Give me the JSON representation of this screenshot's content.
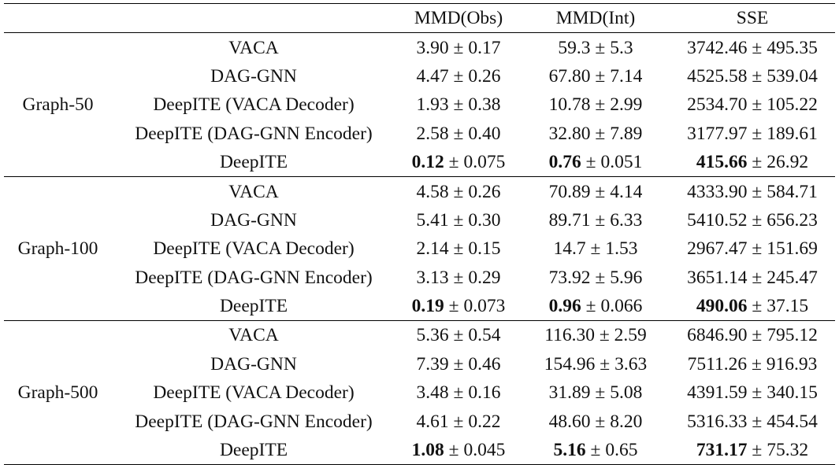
{
  "columns": [
    "",
    "",
    "MMD(Obs)",
    "MMD(Int)",
    "SSE"
  ],
  "groups": [
    {
      "label": "Graph-50",
      "rows": [
        {
          "method": "VACA",
          "mmd_obs": "3.90",
          "mmd_obs_sd": "0.17",
          "mmd_int": "59.3",
          "mmd_int_sd": "5.3",
          "sse": "3742.46",
          "sse_sd": "495.35"
        },
        {
          "method": "DAG-GNN",
          "mmd_obs": "4.47",
          "mmd_obs_sd": "0.26",
          "mmd_int": "67.80",
          "mmd_int_sd": "7.14",
          "sse": "4525.58",
          "sse_sd": "539.04"
        },
        {
          "method": "DeepITE (VACA Decoder)",
          "mmd_obs": "1.93",
          "mmd_obs_sd": "0.38",
          "mmd_int": "10.78",
          "mmd_int_sd": "2.99",
          "sse": "2534.70",
          "sse_sd": "105.22"
        },
        {
          "method": "DeepITE (DAG-GNN Encoder)",
          "mmd_obs": "2.58",
          "mmd_obs_sd": "0.40",
          "mmd_int": "32.80",
          "mmd_int_sd": "7.89",
          "sse": "3177.97",
          "sse_sd": "189.61"
        },
        {
          "method": "DeepITE",
          "mmd_obs": "0.12",
          "mmd_obs_sd": "0.075",
          "mmd_int": "0.76",
          "mmd_int_sd": "0.051",
          "sse": "415.66",
          "sse_sd": "26.92",
          "bold": true
        }
      ]
    },
    {
      "label": "Graph-100",
      "rows": [
        {
          "method": "VACA",
          "mmd_obs": "4.58",
          "mmd_obs_sd": "0.26",
          "mmd_int": "70.89",
          "mmd_int_sd": "4.14",
          "sse": "4333.90",
          "sse_sd": "584.71"
        },
        {
          "method": "DAG-GNN",
          "mmd_obs": "5.41",
          "mmd_obs_sd": "0.30",
          "mmd_int": "89.71",
          "mmd_int_sd": "6.33",
          "sse": "5410.52",
          "sse_sd": "656.23"
        },
        {
          "method": "DeepITE (VACA Decoder)",
          "mmd_obs": "2.14",
          "mmd_obs_sd": "0.15",
          "mmd_int": "14.7",
          "mmd_int_sd": "1.53",
          "sse": "2967.47",
          "sse_sd": "151.69"
        },
        {
          "method": "DeepITE (DAG-GNN Encoder)",
          "mmd_obs": "3.13",
          "mmd_obs_sd": "0.29",
          "mmd_int": "73.92",
          "mmd_int_sd": "5.96",
          "sse": "3651.14",
          "sse_sd": "245.47"
        },
        {
          "method": "DeepITE",
          "mmd_obs": "0.19",
          "mmd_obs_sd": "0.073",
          "mmd_int": "0.96",
          "mmd_int_sd": "0.066",
          "sse": "490.06",
          "sse_sd": "37.15",
          "bold": true
        }
      ]
    },
    {
      "label": "Graph-500",
      "rows": [
        {
          "method": "VACA",
          "mmd_obs": "5.36",
          "mmd_obs_sd": "0.54",
          "mmd_int": "116.30",
          "mmd_int_sd": "2.59",
          "sse": "6846.90",
          "sse_sd": "795.12"
        },
        {
          "method": "DAG-GNN",
          "mmd_obs": "7.39",
          "mmd_obs_sd": "0.46",
          "mmd_int": "154.96",
          "mmd_int_sd": "3.63",
          "sse": "7511.26",
          "sse_sd": "916.93"
        },
        {
          "method": "DeepITE (VACA Decoder)",
          "mmd_obs": "3.48",
          "mmd_obs_sd": "0.16",
          "mmd_int": "31.89",
          "mmd_int_sd": "5.08",
          "sse": "4391.59",
          "sse_sd": "340.15"
        },
        {
          "method": "DeepITE (DAG-GNN Encoder)",
          "mmd_obs": "4.61",
          "mmd_obs_sd": "0.22",
          "mmd_int": "48.60",
          "mmd_int_sd": "8.20",
          "sse": "5316.33",
          "sse_sd": "454.54"
        },
        {
          "method": "DeepITE",
          "mmd_obs": "1.08",
          "mmd_obs_sd": "0.045",
          "mmd_int": "5.16",
          "mmd_int_sd": "0.65",
          "sse": "731.17",
          "sse_sd": "75.32",
          "bold": true
        }
      ]
    }
  ]
}
